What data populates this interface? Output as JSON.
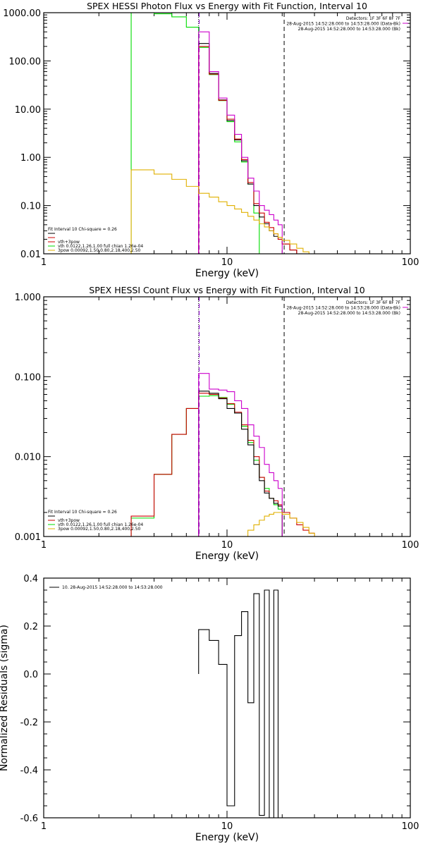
{
  "chart_data": [
    {
      "type": "line",
      "title": "SPEX HESSI Photon Flux vs Energy with Fit Function, Interval 10",
      "xlabel": "Energy (keV)",
      "ylabel": "",
      "xscale": "log",
      "yscale": "log",
      "xlim": [
        1,
        100
      ],
      "ylim": [
        0.01,
        1000
      ],
      "x_ticks": [
        "1",
        "10",
        "100"
      ],
      "y_ticks": [
        "0.01",
        "0.10",
        "1.00",
        "10.00",
        "100.00",
        "1000.00"
      ],
      "header_lines": [
        "Detectors: 1F 3F 6F 8F 7F",
        "28-Aug-2015 14:52:28.000 to 14:53:28.000 (Data-Bk)",
        "28-Aug-2015 14:52:28.000 to 14:53:28.000 (Bk)"
      ],
      "legend": {
        "placement": "bottom-left",
        "heading": "Fit Interval 10   Chi-square = 0.26",
        "entries": [
          {
            "label": "",
            "color": "#000000"
          },
          {
            "label": "",
            "color": "#cc0000"
          },
          {
            "label": "vth+3pow",
            "color": "#cc0000"
          },
          {
            "label": "vth 0.0122,1.26,1.00   full chian 1.26e-04",
            "color": "#00dd00"
          },
          {
            "label": "3pow 0.00092,1.50,0.80,2.18,400,2.50",
            "color": "#e0b000"
          }
        ]
      },
      "vlines": [
        {
          "x": 7.0,
          "style": "dotted",
          "color": "#000000"
        },
        {
          "x": 7.05,
          "style": "dashed",
          "color": "#8800cc"
        },
        {
          "x": 20.5,
          "style": "dashed",
          "color": "#000000"
        }
      ],
      "series": [
        {
          "color": "#00dd00",
          "edges": [
            3,
            4,
            5,
            6,
            7,
            8,
            9,
            10,
            11,
            12,
            13,
            14,
            15,
            16,
            17
          ],
          "values": [
            1000,
            950,
            820,
            500,
            190,
            52,
            15,
            5.5,
            2.1,
            0.8,
            0.28,
            0.07,
            0.01,
            0.002
          ]
        },
        {
          "color": "#000000",
          "edges": [
            7,
            8,
            9,
            10,
            11,
            12,
            13,
            14,
            15,
            16,
            17,
            18,
            19,
            20,
            22,
            24
          ],
          "values": [
            230,
            55,
            15.5,
            5.8,
            2.3,
            0.85,
            0.28,
            0.1,
            0.058,
            0.042,
            0.03,
            0.023,
            0.02,
            0.016,
            0.012
          ]
        },
        {
          "color": "#cc0000",
          "edges": [
            7,
            8,
            9,
            10,
            11,
            12,
            13,
            14,
            15,
            16,
            17,
            18,
            19,
            20,
            22,
            24
          ],
          "values": [
            200,
            53,
            15.2,
            6.2,
            2.4,
            0.9,
            0.3,
            0.11,
            0.07,
            0.045,
            0.035,
            0.026,
            0.02,
            0.016,
            0.012
          ]
        },
        {
          "color": "#cc00cc",
          "edges": [
            7,
            8,
            9,
            10,
            11,
            12,
            13,
            14,
            15,
            16,
            17,
            18,
            19,
            20
          ],
          "values": [
            400,
            60,
            17,
            7.5,
            3.0,
            1.0,
            0.37,
            0.2,
            0.1,
            0.08,
            0.065,
            0.05,
            0.04
          ]
        },
        {
          "color": "#e0b000",
          "edges": [
            3,
            4,
            5,
            6,
            7,
            8,
            9,
            10,
            11,
            12,
            13,
            14,
            15,
            16,
            17,
            18,
            19,
            20,
            22,
            24,
            26,
            28,
            30
          ],
          "values": [
            0.55,
            0.45,
            0.35,
            0.25,
            0.18,
            0.15,
            0.12,
            0.1,
            0.085,
            0.072,
            0.06,
            0.05,
            0.042,
            0.036,
            0.03,
            0.026,
            0.022,
            0.019,
            0.016,
            0.013,
            0.011,
            0.01
          ]
        }
      ]
    },
    {
      "type": "line",
      "title": "SPEX HESSI Count Flux vs Energy with Fit Function, Interval 10",
      "xlabel": "Energy (keV)",
      "ylabel": "",
      "xscale": "log",
      "yscale": "log",
      "xlim": [
        1,
        100
      ],
      "ylim": [
        0.001,
        1
      ],
      "x_ticks": [
        "1",
        "10",
        "100"
      ],
      "y_ticks": [
        "0.001",
        "0.010",
        "0.100",
        "1.000"
      ],
      "header_lines": [
        "Detectors: 1F 3F 6F 8F 7F",
        "28-Aug-2015 14:52:28.000 to 14:53:28.000 (Data-Bk)",
        "28-Aug-2015 14:52:28.000 to 14:53:28.000 (Bk)"
      ],
      "legend": {
        "placement": "bottom-left",
        "heading": "Fit Interval 10   Chi-square = 0.26",
        "entries": [
          {
            "label": "",
            "color": "#000000"
          },
          {
            "label": "vth+3pow",
            "color": "#cc0000"
          },
          {
            "label": "vth 0.0122,1.26,1.00   full chian 1.26e-04",
            "color": "#00dd00"
          },
          {
            "label": "3pow 0.00092,1.50,0.80,2.18,400,2.50",
            "color": "#e0b000"
          }
        ]
      },
      "vlines": [
        {
          "x": 7.0,
          "style": "dotted",
          "color": "#000000"
        },
        {
          "x": 7.05,
          "style": "dashed",
          "color": "#8800cc"
        },
        {
          "x": 20.5,
          "style": "dashed",
          "color": "#000000"
        }
      ],
      "series": [
        {
          "color": "#00dd00",
          "edges": [
            3,
            4,
            5,
            6,
            7,
            8,
            9,
            10,
            11,
            12,
            13,
            14,
            15,
            16,
            17,
            18,
            19,
            20
          ],
          "values": [
            0.0017,
            0.006,
            0.019,
            0.04,
            0.057,
            0.058,
            0.055,
            0.045,
            0.035,
            0.024,
            0.015,
            0.009,
            0.0055,
            0.004,
            0.003,
            0.0025,
            0.0022
          ]
        },
        {
          "color": "#cc0000",
          "edges": [
            3,
            4,
            5,
            6,
            7,
            8,
            9,
            10,
            11,
            12,
            13,
            14,
            15,
            16,
            17,
            18,
            19,
            20,
            22,
            24,
            26,
            28,
            30,
            34
          ],
          "values": [
            0.0018,
            0.006,
            0.019,
            0.04,
            0.062,
            0.06,
            0.054,
            0.046,
            0.036,
            0.025,
            0.016,
            0.01,
            0.0055,
            0.0037,
            0.003,
            0.0028,
            0.0025,
            0.002,
            0.0017,
            0.0014,
            0.0012,
            0.0011,
            0.001
          ]
        },
        {
          "color": "#000000",
          "edges": [
            7,
            8,
            9,
            10,
            11,
            12,
            13,
            14,
            15,
            16,
            17,
            18,
            19,
            20
          ],
          "values": [
            0.066,
            0.062,
            0.053,
            0.04,
            0.035,
            0.022,
            0.014,
            0.008,
            0.005,
            0.0035,
            0.003,
            0.0026,
            0.0024
          ]
        },
        {
          "color": "#cc00cc",
          "edges": [
            7,
            8,
            9,
            10,
            11,
            12,
            13,
            14,
            15,
            16,
            17,
            18,
            19,
            20
          ],
          "values": [
            0.11,
            0.07,
            0.068,
            0.065,
            0.05,
            0.04,
            0.025,
            0.018,
            0.013,
            0.008,
            0.0063,
            0.005,
            0.004
          ]
        },
        {
          "color": "#e0b000",
          "edges": [
            12,
            13,
            14,
            15,
            16,
            17,
            18,
            19,
            20,
            22,
            24,
            26,
            28,
            30,
            34
          ],
          "values": [
            0.001,
            0.0012,
            0.0014,
            0.0016,
            0.0018,
            0.0019,
            0.002,
            0.002,
            0.0019,
            0.0017,
            0.0015,
            0.0013,
            0.0011,
            0.001
          ]
        }
      ]
    },
    {
      "type": "line",
      "title": "",
      "xlabel": "Energy (keV)",
      "ylabel": "Normalized Residuals (sigma)",
      "xscale": "log",
      "yscale": "linear",
      "xlim": [
        1,
        100
      ],
      "ylim": [
        -0.6,
        0.4
      ],
      "x_ticks": [
        "1",
        "10",
        "100"
      ],
      "y_ticks": [
        "-0.6",
        "-0.4",
        "-0.2",
        "0.0",
        "0.2",
        "0.4"
      ],
      "legend": {
        "placement": "top-left",
        "entries": [
          {
            "label": "10. 28-Aug-2015 14:52:28.000 to 14:53:28.000",
            "color": "#000000"
          }
        ]
      },
      "series": [
        {
          "color": "#000000",
          "edges": [
            7,
            8,
            9,
            10,
            11,
            12,
            13,
            14,
            15,
            16,
            17,
            18,
            19,
            20
          ],
          "values": [
            0.185,
            0.14,
            0.04,
            -0.55,
            0.16,
            0.26,
            -0.12,
            0.335,
            -0.59,
            0.35,
            -0.6,
            0.35,
            -0.6
          ]
        }
      ]
    }
  ]
}
